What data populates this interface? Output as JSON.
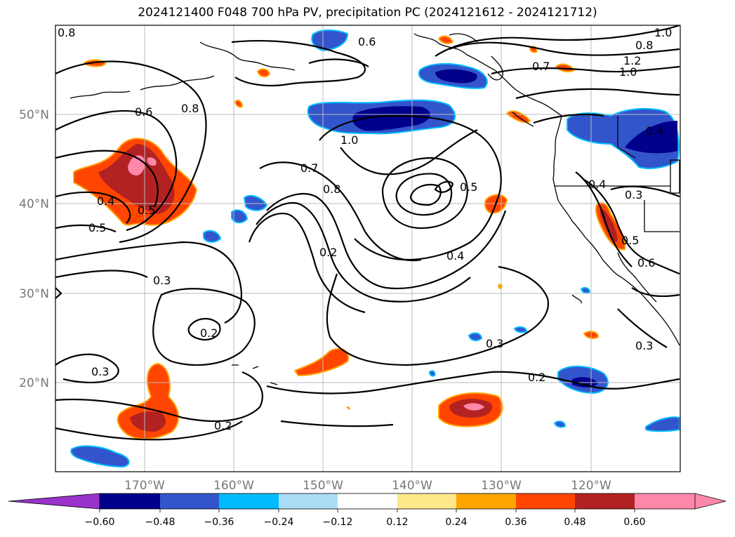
{
  "title": "2024121400 F048 700 hPa PV, precipitation PC (2024121612 - 2024121712)",
  "lon_labels": [
    "170°W",
    "160°W",
    "150°W",
    "140°W",
    "130°W",
    "120°W"
  ],
  "lat_labels": [
    "50°N",
    "40°N",
    "30°N",
    "20°N"
  ],
  "contour_labels": [
    "0.8",
    "0.6",
    "0.8",
    "1.0",
    "1.2",
    "1.0",
    "0.7",
    "0.6",
    "0.8",
    "1.0",
    "0.7",
    "0.8",
    "0.5",
    "0.4",
    "0.5",
    "0.4",
    "0.5",
    "0.2",
    "0.4",
    "0.3",
    "0.3",
    "0.6",
    "0.5",
    "0.2",
    "0.3",
    "0.3",
    "0.2",
    "0.2",
    "0.3",
    "0.4"
  ],
  "colorbar": {
    "ticks": [
      "−0.60",
      "−0.48",
      "−0.36",
      "−0.24",
      "−0.12",
      "0.12",
      "0.24",
      "0.36",
      "0.48",
      "0.60"
    ],
    "colors": [
      "#9933cc",
      "#00008b",
      "#3355cc",
      "#00bbff",
      "#aaddf5",
      "#ffffff",
      "#ffe88a",
      "#ffa500",
      "#ff4500",
      "#b22222",
      "#ff88aa"
    ]
  }
}
